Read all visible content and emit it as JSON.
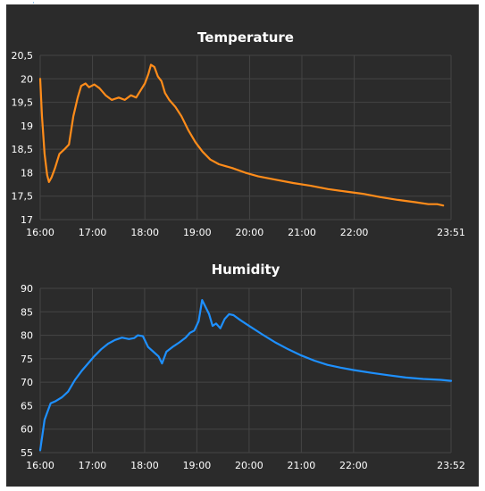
{
  "colors": {
    "background": "#2b2b2b",
    "panel": "#2b2b2b",
    "grid": "#454545",
    "text": "#ffffff",
    "temperature": "#ff8c1a",
    "humidity": "#1e90ff",
    "marker": "#3b8fd8"
  },
  "chart_data": [
    {
      "type": "line",
      "title": "Temperature",
      "xlabel": "",
      "ylabel": "",
      "x_ticks": [
        "16:00",
        "17:00",
        "18:00",
        "19:00",
        "20:00",
        "21:00",
        "22:00",
        "23:51"
      ],
      "y_ticks": [
        "17",
        "17,5",
        "18",
        "18,5",
        "19",
        "19,5",
        "20",
        "20,5"
      ],
      "xlim": [
        "16:00",
        "23:51"
      ],
      "ylim": [
        17,
        20.5
      ],
      "grid": true,
      "series": [
        {
          "color": "#ff8c1a",
          "points": [
            [
              "16:00",
              20.0
            ],
            [
              "16:02",
              19.2
            ],
            [
              "16:05",
              18.4
            ],
            [
              "16:08",
              17.95
            ],
            [
              "16:10",
              17.8
            ],
            [
              "16:13",
              17.9
            ],
            [
              "16:17",
              18.1
            ],
            [
              "16:22",
              18.4
            ],
            [
              "16:28",
              18.5
            ],
            [
              "16:33",
              18.6
            ],
            [
              "16:38",
              19.2
            ],
            [
              "16:43",
              19.6
            ],
            [
              "16:47",
              19.85
            ],
            [
              "16:52",
              19.9
            ],
            [
              "16:56",
              19.82
            ],
            [
              "17:02",
              19.88
            ],
            [
              "17:08",
              19.8
            ],
            [
              "17:15",
              19.65
            ],
            [
              "17:22",
              19.55
            ],
            [
              "17:30",
              19.6
            ],
            [
              "17:37",
              19.55
            ],
            [
              "17:44",
              19.65
            ],
            [
              "17:50",
              19.6
            ],
            [
              "17:55",
              19.75
            ],
            [
              "18:00",
              19.9
            ],
            [
              "18:04",
              20.1
            ],
            [
              "18:07",
              20.3
            ],
            [
              "18:11",
              20.25
            ],
            [
              "18:15",
              20.05
            ],
            [
              "18:19",
              19.95
            ],
            [
              "18:23",
              19.7
            ],
            [
              "18:28",
              19.55
            ],
            [
              "18:35",
              19.4
            ],
            [
              "18:42",
              19.2
            ],
            [
              "18:50",
              18.9
            ],
            [
              "18:58",
              18.65
            ],
            [
              "19:06",
              18.45
            ],
            [
              "19:15",
              18.28
            ],
            [
              "19:25",
              18.18
            ],
            [
              "19:40",
              18.1
            ],
            [
              "19:55",
              18.0
            ],
            [
              "20:10",
              17.92
            ],
            [
              "20:30",
              17.85
            ],
            [
              "20:50",
              17.78
            ],
            [
              "21:10",
              17.72
            ],
            [
              "21:30",
              17.65
            ],
            [
              "21:50",
              17.6
            ],
            [
              "22:10",
              17.55
            ],
            [
              "22:30",
              17.48
            ],
            [
              "22:50",
              17.42
            ],
            [
              "23:10",
              17.37
            ],
            [
              "23:25",
              17.33
            ],
            [
              "23:35",
              17.33
            ],
            [
              "23:42",
              17.3
            ]
          ]
        }
      ]
    },
    {
      "type": "line",
      "title": "Humidity",
      "xlabel": "",
      "ylabel": "",
      "x_ticks": [
        "16:00",
        "17:00",
        "18:00",
        "19:00",
        "20:00",
        "21:00",
        "22:00",
        "23:52"
      ],
      "y_ticks": [
        "55",
        "60",
        "65",
        "70",
        "75",
        "80",
        "85",
        "90"
      ],
      "xlim": [
        "16:00",
        "23:52"
      ],
      "ylim": [
        55,
        90
      ],
      "grid": true,
      "series": [
        {
          "color": "#1e90ff",
          "points": [
            [
              "16:00",
              55.5
            ],
            [
              "16:02",
              58.0
            ],
            [
              "16:05",
              62.0
            ],
            [
              "16:08",
              63.5
            ],
            [
              "16:12",
              65.5
            ],
            [
              "16:18",
              66.0
            ],
            [
              "16:25",
              66.8
            ],
            [
              "16:32",
              68.0
            ],
            [
              "16:40",
              70.5
            ],
            [
              "16:48",
              72.5
            ],
            [
              "16:55",
              74.0
            ],
            [
              "17:02",
              75.5
            ],
            [
              "17:10",
              77.0
            ],
            [
              "17:18",
              78.2
            ],
            [
              "17:26",
              79.0
            ],
            [
              "17:34",
              79.5
            ],
            [
              "17:42",
              79.2
            ],
            [
              "17:48",
              79.4
            ],
            [
              "17:52",
              80.0
            ],
            [
              "17:58",
              79.8
            ],
            [
              "18:04",
              77.5
            ],
            [
              "18:10",
              76.5
            ],
            [
              "18:16",
              75.5
            ],
            [
              "18:20",
              74.0
            ],
            [
              "18:25",
              76.5
            ],
            [
              "18:32",
              77.5
            ],
            [
              "18:40",
              78.5
            ],
            [
              "18:47",
              79.5
            ],
            [
              "18:52",
              80.5
            ],
            [
              "18:57",
              81.0
            ],
            [
              "19:02",
              83.0
            ],
            [
              "19:06",
              87.5
            ],
            [
              "19:10",
              86.0
            ],
            [
              "19:14",
              84.5
            ],
            [
              "19:18",
              82.0
            ],
            [
              "19:22",
              82.5
            ],
            [
              "19:27",
              81.5
            ],
            [
              "19:32",
              83.5
            ],
            [
              "19:37",
              84.5
            ],
            [
              "19:42",
              84.3
            ],
            [
              "19:50",
              83.2
            ],
            [
              "20:00",
              82.0
            ],
            [
              "20:15",
              80.2
            ],
            [
              "20:30",
              78.5
            ],
            [
              "20:45",
              77.0
            ],
            [
              "21:00",
              75.7
            ],
            [
              "21:15",
              74.6
            ],
            [
              "21:30",
              73.7
            ],
            [
              "21:45",
              73.1
            ],
            [
              "22:00",
              72.6
            ],
            [
              "22:20",
              72.0
            ],
            [
              "22:40",
              71.5
            ],
            [
              "23:00",
              71.0
            ],
            [
              "23:20",
              70.7
            ],
            [
              "23:40",
              70.5
            ],
            [
              "23:52",
              70.3
            ]
          ]
        }
      ]
    }
  ]
}
